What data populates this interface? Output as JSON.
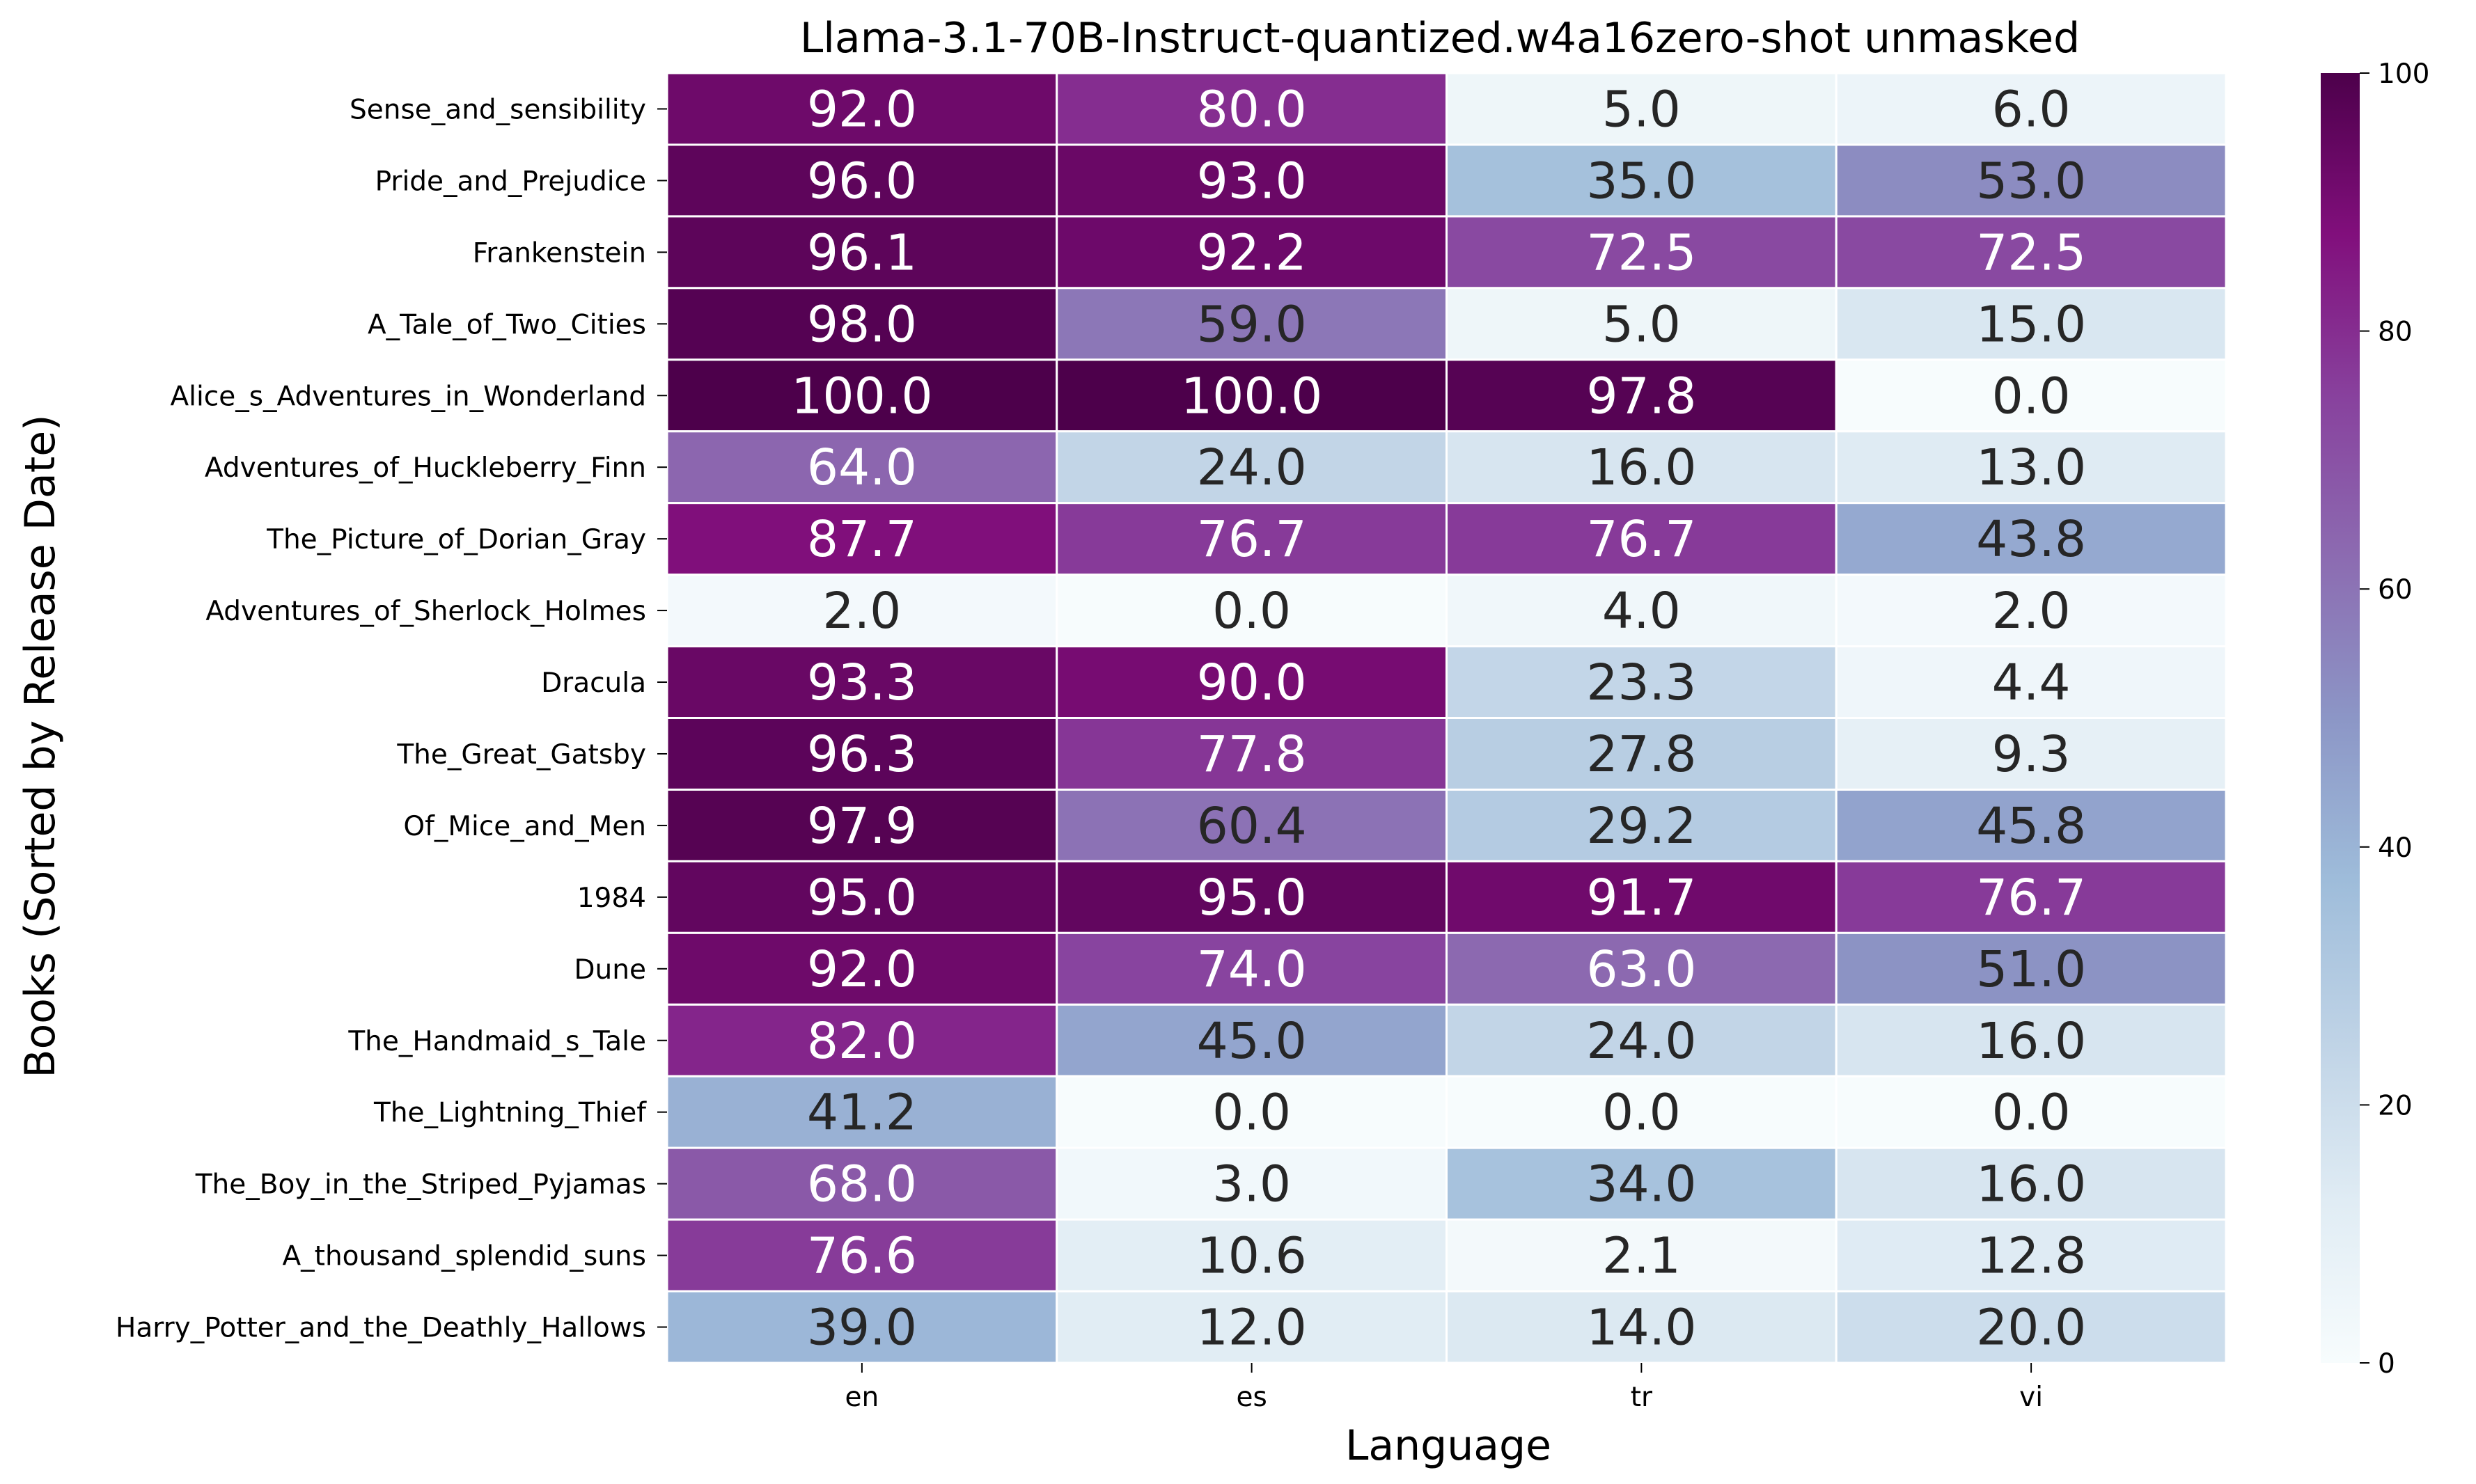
{
  "chart_data": {
    "type": "heatmap",
    "title": "Llama-3.1-70B-Instruct-quantized.w4a16zero-shot unmasked",
    "xlabel": "Language",
    "ylabel": "Books (Sorted by Release Date)",
    "x": [
      "en",
      "es",
      "tr",
      "vi"
    ],
    "y": [
      "Sense_and_sensibility",
      "Pride_and_Prejudice",
      "Frankenstein",
      "A_Tale_of_Two_Cities",
      "Alice_s_Adventures_in_Wonderland",
      "Adventures_of_Huckleberry_Finn",
      "The_Picture_of_Dorian_Gray",
      "Adventures_of_Sherlock_Holmes",
      "Dracula",
      "The_Great_Gatsby",
      "Of_Mice_and_Men",
      "1984",
      "Dune",
      "The_Handmaid_s_Tale",
      "The_Lightning_Thief",
      "The_Boy_in_the_Striped_Pyjamas",
      "A_thousand_splendid_suns",
      "Harry_Potter_and_the_Deathly_Hallows"
    ],
    "values": [
      [
        92.0,
        80.0,
        5.0,
        6.0
      ],
      [
        96.0,
        93.0,
        35.0,
        53.0
      ],
      [
        96.1,
        92.2,
        72.5,
        72.5
      ],
      [
        98.0,
        59.0,
        5.0,
        15.0
      ],
      [
        100.0,
        100.0,
        97.8,
        0.0
      ],
      [
        64.0,
        24.0,
        16.0,
        13.0
      ],
      [
        87.7,
        76.7,
        76.7,
        43.8
      ],
      [
        2.0,
        0.0,
        4.0,
        2.0
      ],
      [
        93.3,
        90.0,
        23.3,
        4.4
      ],
      [
        96.3,
        77.8,
        27.8,
        9.3
      ],
      [
        97.9,
        60.4,
        29.2,
        45.8
      ],
      [
        95.0,
        95.0,
        91.7,
        76.7
      ],
      [
        92.0,
        74.0,
        63.0,
        51.0
      ],
      [
        82.0,
        45.0,
        24.0,
        16.0
      ],
      [
        41.2,
        0.0,
        0.0,
        0.0
      ],
      [
        68.0,
        3.0,
        34.0,
        16.0
      ],
      [
        76.6,
        10.6,
        2.1,
        12.8
      ],
      [
        39.0,
        12.0,
        14.0,
        20.0
      ]
    ],
    "value_format": "0.1f",
    "colormap": "BuPu",
    "colorbar": {
      "range": [
        0,
        100
      ],
      "ticks": [
        0,
        20,
        40,
        60,
        80,
        100
      ]
    },
    "cell_border_color": "#ffffff"
  }
}
